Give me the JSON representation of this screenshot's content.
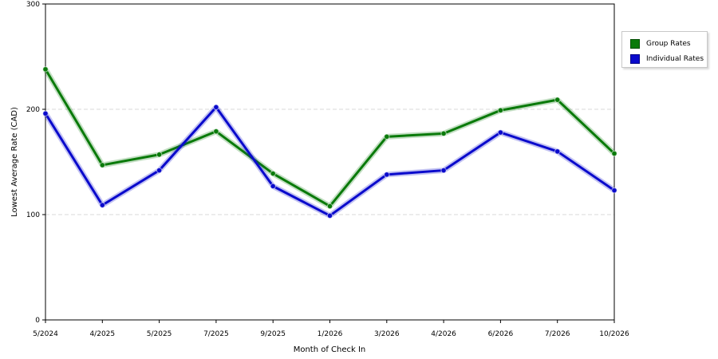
{
  "chart_data": {
    "type": "line",
    "title": "",
    "xlabel": "Month of Check In",
    "ylabel": "Lowest Average Rate (CAD)",
    "ylim": [
      0,
      300
    ],
    "yticks": [
      "0",
      "100",
      "200",
      "300"
    ],
    "grid": true,
    "legend_position": "right",
    "categories": [
      "5/2024",
      "4/2025",
      "5/2025",
      "7/2025",
      "9/2025",
      "1/2026",
      "3/2026",
      "4/2026",
      "6/2026",
      "7/2026",
      "10/2026"
    ],
    "series": [
      {
        "name": "Group Rates",
        "color": "#0a7a0a",
        "values": [
          238,
          147,
          157,
          179,
          139,
          108,
          174,
          177,
          199,
          209,
          158
        ]
      },
      {
        "name": "Individual Rates",
        "color": "#0a0acc",
        "values": [
          196,
          109,
          142,
          202,
          127,
          99,
          138,
          142,
          178,
          160,
          123
        ]
      }
    ]
  }
}
